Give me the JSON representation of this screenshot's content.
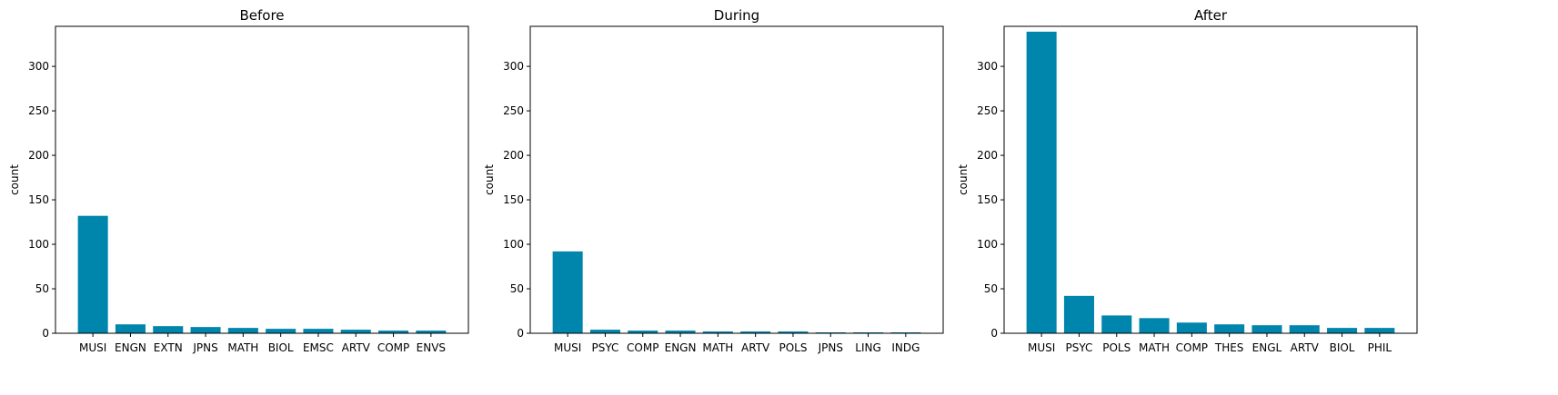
{
  "colors": {
    "bar": "#0085ad",
    "axis": "#000000",
    "background": "#ffffff"
  },
  "chart_data": [
    {
      "type": "bar",
      "title": "Before",
      "xlabel": "",
      "ylabel": "count",
      "ylim": [
        0,
        345
      ],
      "yticks": [
        0,
        50,
        100,
        150,
        200,
        250,
        300
      ],
      "categories": [
        "MUSI",
        "ENGN",
        "EXTN",
        "JPNS",
        "MATH",
        "BIOL",
        "EMSC",
        "ARTV",
        "COMP",
        "ENVS"
      ],
      "values": [
        132,
        10,
        8,
        7,
        6,
        5,
        5,
        4,
        3,
        3
      ]
    },
    {
      "type": "bar",
      "title": "During",
      "xlabel": "",
      "ylabel": "count",
      "ylim": [
        0,
        345
      ],
      "yticks": [
        0,
        50,
        100,
        150,
        200,
        250,
        300
      ],
      "categories": [
        "MUSI",
        "PSYC",
        "COMP",
        "ENGN",
        "MATH",
        "ARTV",
        "POLS",
        "JPNS",
        "LING",
        "INDG"
      ],
      "values": [
        92,
        4,
        3,
        3,
        2,
        2,
        2,
        1,
        1,
        1
      ]
    },
    {
      "type": "bar",
      "title": "After",
      "xlabel": "",
      "ylabel": "count",
      "ylim": [
        0,
        345
      ],
      "yticks": [
        0,
        50,
        100,
        150,
        200,
        250,
        300
      ],
      "categories": [
        "MUSI",
        "PSYC",
        "POLS",
        "MATH",
        "COMP",
        "THES",
        "ENGL",
        "ARTV",
        "BIOL",
        "PHIL"
      ],
      "values": [
        339,
        42,
        20,
        17,
        12,
        10,
        9,
        9,
        6,
        6
      ]
    }
  ]
}
